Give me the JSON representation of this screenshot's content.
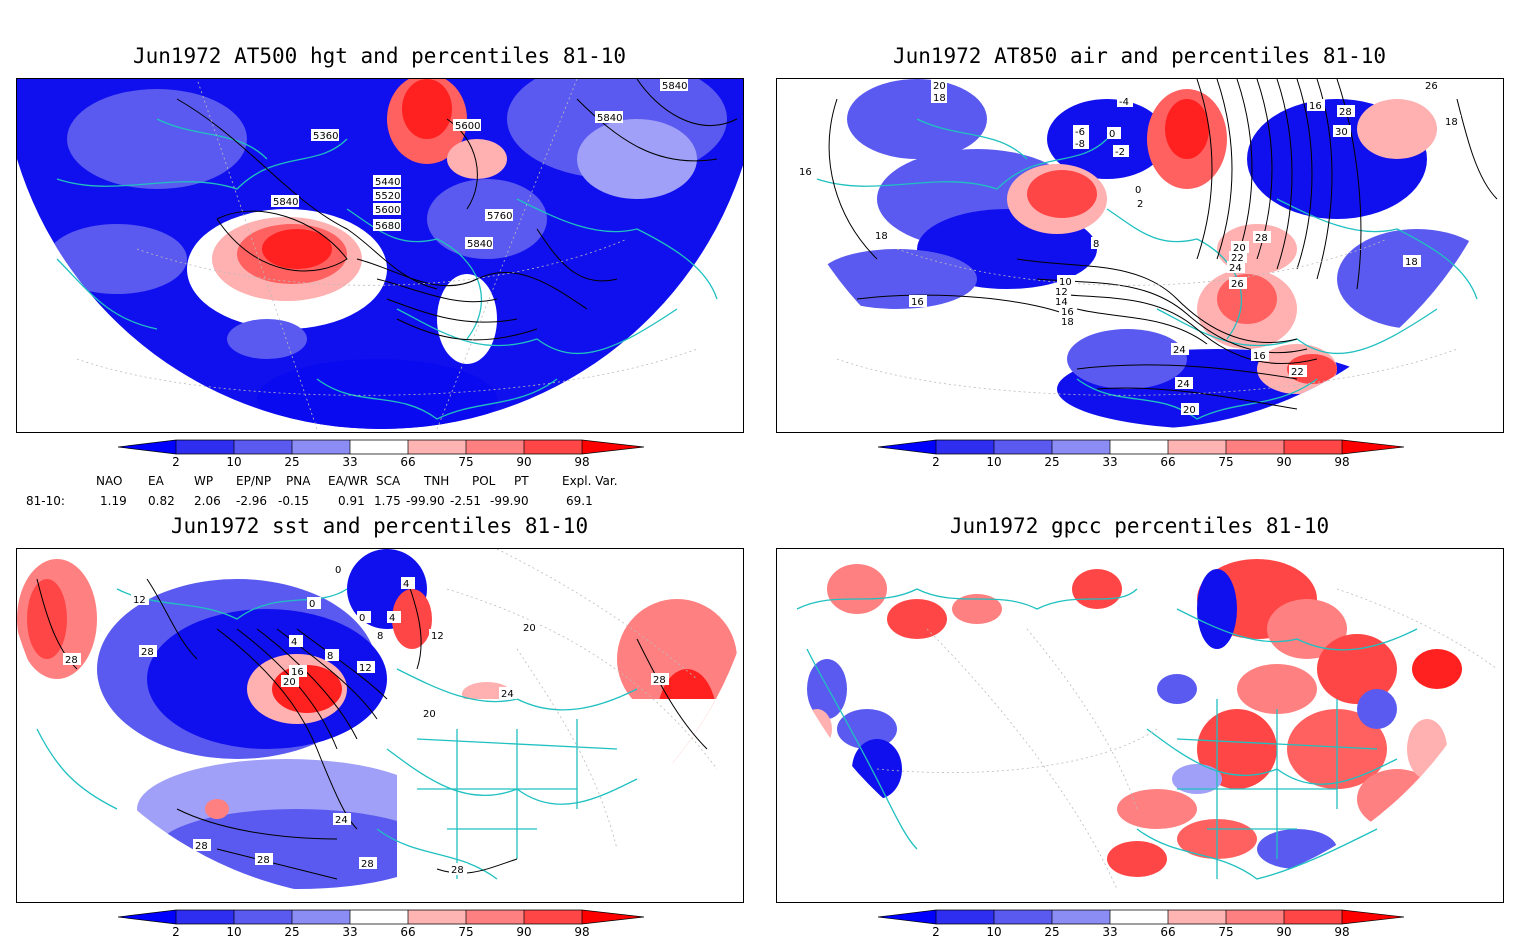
{
  "panels": [
    {
      "title": "Jun1972 AT500 hgt and percentiles 81-10",
      "contour_labels": [
        "5840",
        "5840",
        "5840",
        "5360",
        "5600",
        "5440",
        "5520",
        "5600",
        "5680",
        "5760",
        "5840"
      ]
    },
    {
      "title": "Jun1972 AT850 air and percentiles 81-10",
      "contour_labels": [
        "20",
        "18",
        "-4",
        "-6",
        "-8",
        "0",
        "-2",
        "0",
        "2",
        "16",
        "28",
        "26",
        "30",
        "18",
        "16",
        "18",
        "16",
        "8",
        "10",
        "12",
        "14",
        "16",
        "18",
        "20",
        "22",
        "24",
        "26",
        "28",
        "18",
        "24",
        "16",
        "24",
        "22",
        "20",
        "18",
        "16"
      ]
    },
    {
      "title": "Jun1972 sst and percentiles 81-10",
      "contour_labels": [
        "28",
        "20",
        "12",
        "0",
        "0",
        "4",
        "8",
        "12",
        "0",
        "4",
        "28",
        "4",
        "8",
        "12",
        "16",
        "20",
        "20",
        "24",
        "24",
        "28",
        "28",
        "28",
        "28",
        "28",
        "12",
        "20"
      ]
    },
    {
      "title": "Jun1972 gpcc percentiles 81-10",
      "contour_labels": []
    }
  ],
  "colorbar": {
    "labels": [
      "2",
      "10",
      "25",
      "33",
      "66",
      "75",
      "90",
      "98"
    ],
    "colors": [
      "#0000ff",
      "#2e2ef0",
      "#5a5af0",
      "#8c8cf5",
      "#b4b4fa",
      "#ffffff",
      "#ffb4b4",
      "#ff8080",
      "#ff4646",
      "#ff2020",
      "#ff0000"
    ]
  },
  "teleconnections": {
    "headers": [
      "NAO",
      "EA",
      "WP",
      "EP/NP",
      "PNA",
      "EA/WR",
      "SCA",
      "TNH",
      "POL",
      "PT",
      "Expl. Var."
    ],
    "row_label": "81-10:",
    "values": [
      "1.19",
      "0.82",
      "2.06",
      "-2.96",
      "-0.15",
      "0.91",
      "1.75",
      "-99.90",
      "-2.51",
      "-99.90",
      "69.1"
    ]
  },
  "colors": {
    "coast": "#20c0c0",
    "blue_dark": "#1414f0",
    "blue_mid": "#5050f0",
    "blue_light": "#a0a0f8",
    "red_light": "#ffb0b0",
    "red_mid": "#ff6060",
    "red_dark": "#ff2020"
  }
}
